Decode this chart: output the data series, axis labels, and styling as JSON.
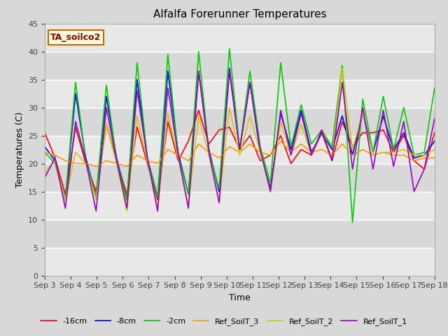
{
  "title": "Alfalfa Forerunner Temperatures",
  "xlabel": "Time",
  "ylabel": "Temperatures (C)",
  "annotation": "TA_soilco2",
  "ylim": [
    0,
    45
  ],
  "yticks": [
    0,
    5,
    10,
    15,
    20,
    25,
    30,
    35,
    40,
    45
  ],
  "x_labels": [
    "Sep 3",
    "Sep 4",
    "Sep 5",
    "Sep 6",
    "Sep 7",
    "Sep 8",
    "Sep 9",
    "Sep 10",
    "Sep 11",
    "Sep 12",
    "Sep 13",
    "Sep 14",
    "Sep 15",
    "Sep 16",
    "Sep 17",
    "Sep 18"
  ],
  "colors": {
    "m16cm": "#ff0000",
    "m8cm": "#0000ff",
    "m2cm": "#00cc00",
    "ref3": "#ff9900",
    "ref2": "#cccc00",
    "ref1": "#9900cc"
  },
  "legend_labels": [
    "-16cm",
    "-8cm",
    "-2cm",
    "Ref_SoilT_3",
    "Ref_SoilT_2",
    "Ref_SoilT_1"
  ],
  "fig_bg": "#d8d8d8",
  "plot_bg": "#f0f0f0",
  "band_light": "#e8e8e8",
  "band_dark": "#d8d8d8",
  "m16cm_vals": [
    25.5,
    21.0,
    14.5,
    26.5,
    20.0,
    15.0,
    27.0,
    20.5,
    14.5,
    26.5,
    20.0,
    13.5,
    27.5,
    20.5,
    24.0,
    29.5,
    23.5,
    26.0,
    26.5,
    22.5,
    25.0,
    20.5,
    21.5,
    25.0,
    20.0,
    22.5,
    21.5,
    25.5,
    20.5,
    27.5,
    23.0,
    25.5,
    25.5,
    26.0,
    22.0,
    25.0,
    20.5,
    19.0,
    25.5
  ],
  "m8cm_vals": [
    23.0,
    20.5,
    13.5,
    32.5,
    21.0,
    14.0,
    32.0,
    21.0,
    13.5,
    35.0,
    21.0,
    14.0,
    36.5,
    22.0,
    14.5,
    36.5,
    22.5,
    15.0,
    37.0,
    22.5,
    34.5,
    22.0,
    15.5,
    29.0,
    22.5,
    29.5,
    22.0,
    25.5,
    22.5,
    28.5,
    21.5,
    29.0,
    22.0,
    28.5,
    22.5,
    25.5,
    21.0,
    21.5,
    24.0
  ],
  "m2cm_vals": [
    22.0,
    20.0,
    13.5,
    34.5,
    20.5,
    14.0,
    34.0,
    20.5,
    13.5,
    38.0,
    21.0,
    14.0,
    39.5,
    21.5,
    14.5,
    40.0,
    22.0,
    15.5,
    40.5,
    22.5,
    36.5,
    23.0,
    16.5,
    38.0,
    23.0,
    30.5,
    23.5,
    26.0,
    23.0,
    37.5,
    9.5,
    31.5,
    22.0,
    32.0,
    22.5,
    30.0,
    21.5,
    22.0,
    33.5
  ],
  "ref3_vals": [
    22.0,
    21.5,
    20.5,
    20.0,
    20.0,
    19.5,
    20.5,
    20.0,
    19.5,
    21.5,
    20.5,
    20.0,
    22.5,
    21.5,
    20.5,
    23.5,
    22.0,
    21.0,
    23.0,
    22.0,
    23.5,
    22.0,
    21.5,
    24.0,
    22.0,
    23.5,
    22.0,
    22.5,
    21.5,
    23.5,
    21.5,
    22.5,
    21.5,
    22.0,
    21.5,
    21.5,
    20.5,
    21.0,
    21.0
  ],
  "ref2_vals": [
    18.5,
    20.5,
    13.5,
    22.0,
    20.0,
    13.5,
    27.0,
    20.0,
    11.5,
    28.5,
    20.5,
    12.0,
    29.0,
    21.0,
    12.5,
    28.5,
    21.5,
    13.0,
    30.0,
    21.5,
    28.5,
    22.0,
    15.0,
    27.5,
    21.5,
    27.0,
    21.5,
    26.0,
    21.0,
    37.0,
    22.5,
    29.0,
    21.5,
    22.0,
    22.0,
    22.5,
    21.5,
    21.5,
    22.5
  ],
  "ref1_vals": [
    17.5,
    21.0,
    12.0,
    27.5,
    20.5,
    11.5,
    30.0,
    20.5,
    12.0,
    33.0,
    21.0,
    11.5,
    33.5,
    21.5,
    12.0,
    36.5,
    22.0,
    13.0,
    36.5,
    22.5,
    34.5,
    22.5,
    15.0,
    29.5,
    21.5,
    29.0,
    21.5,
    26.0,
    20.5,
    34.5,
    19.0,
    30.0,
    19.0,
    29.5,
    19.5,
    27.5,
    15.0,
    19.0,
    28.0
  ]
}
